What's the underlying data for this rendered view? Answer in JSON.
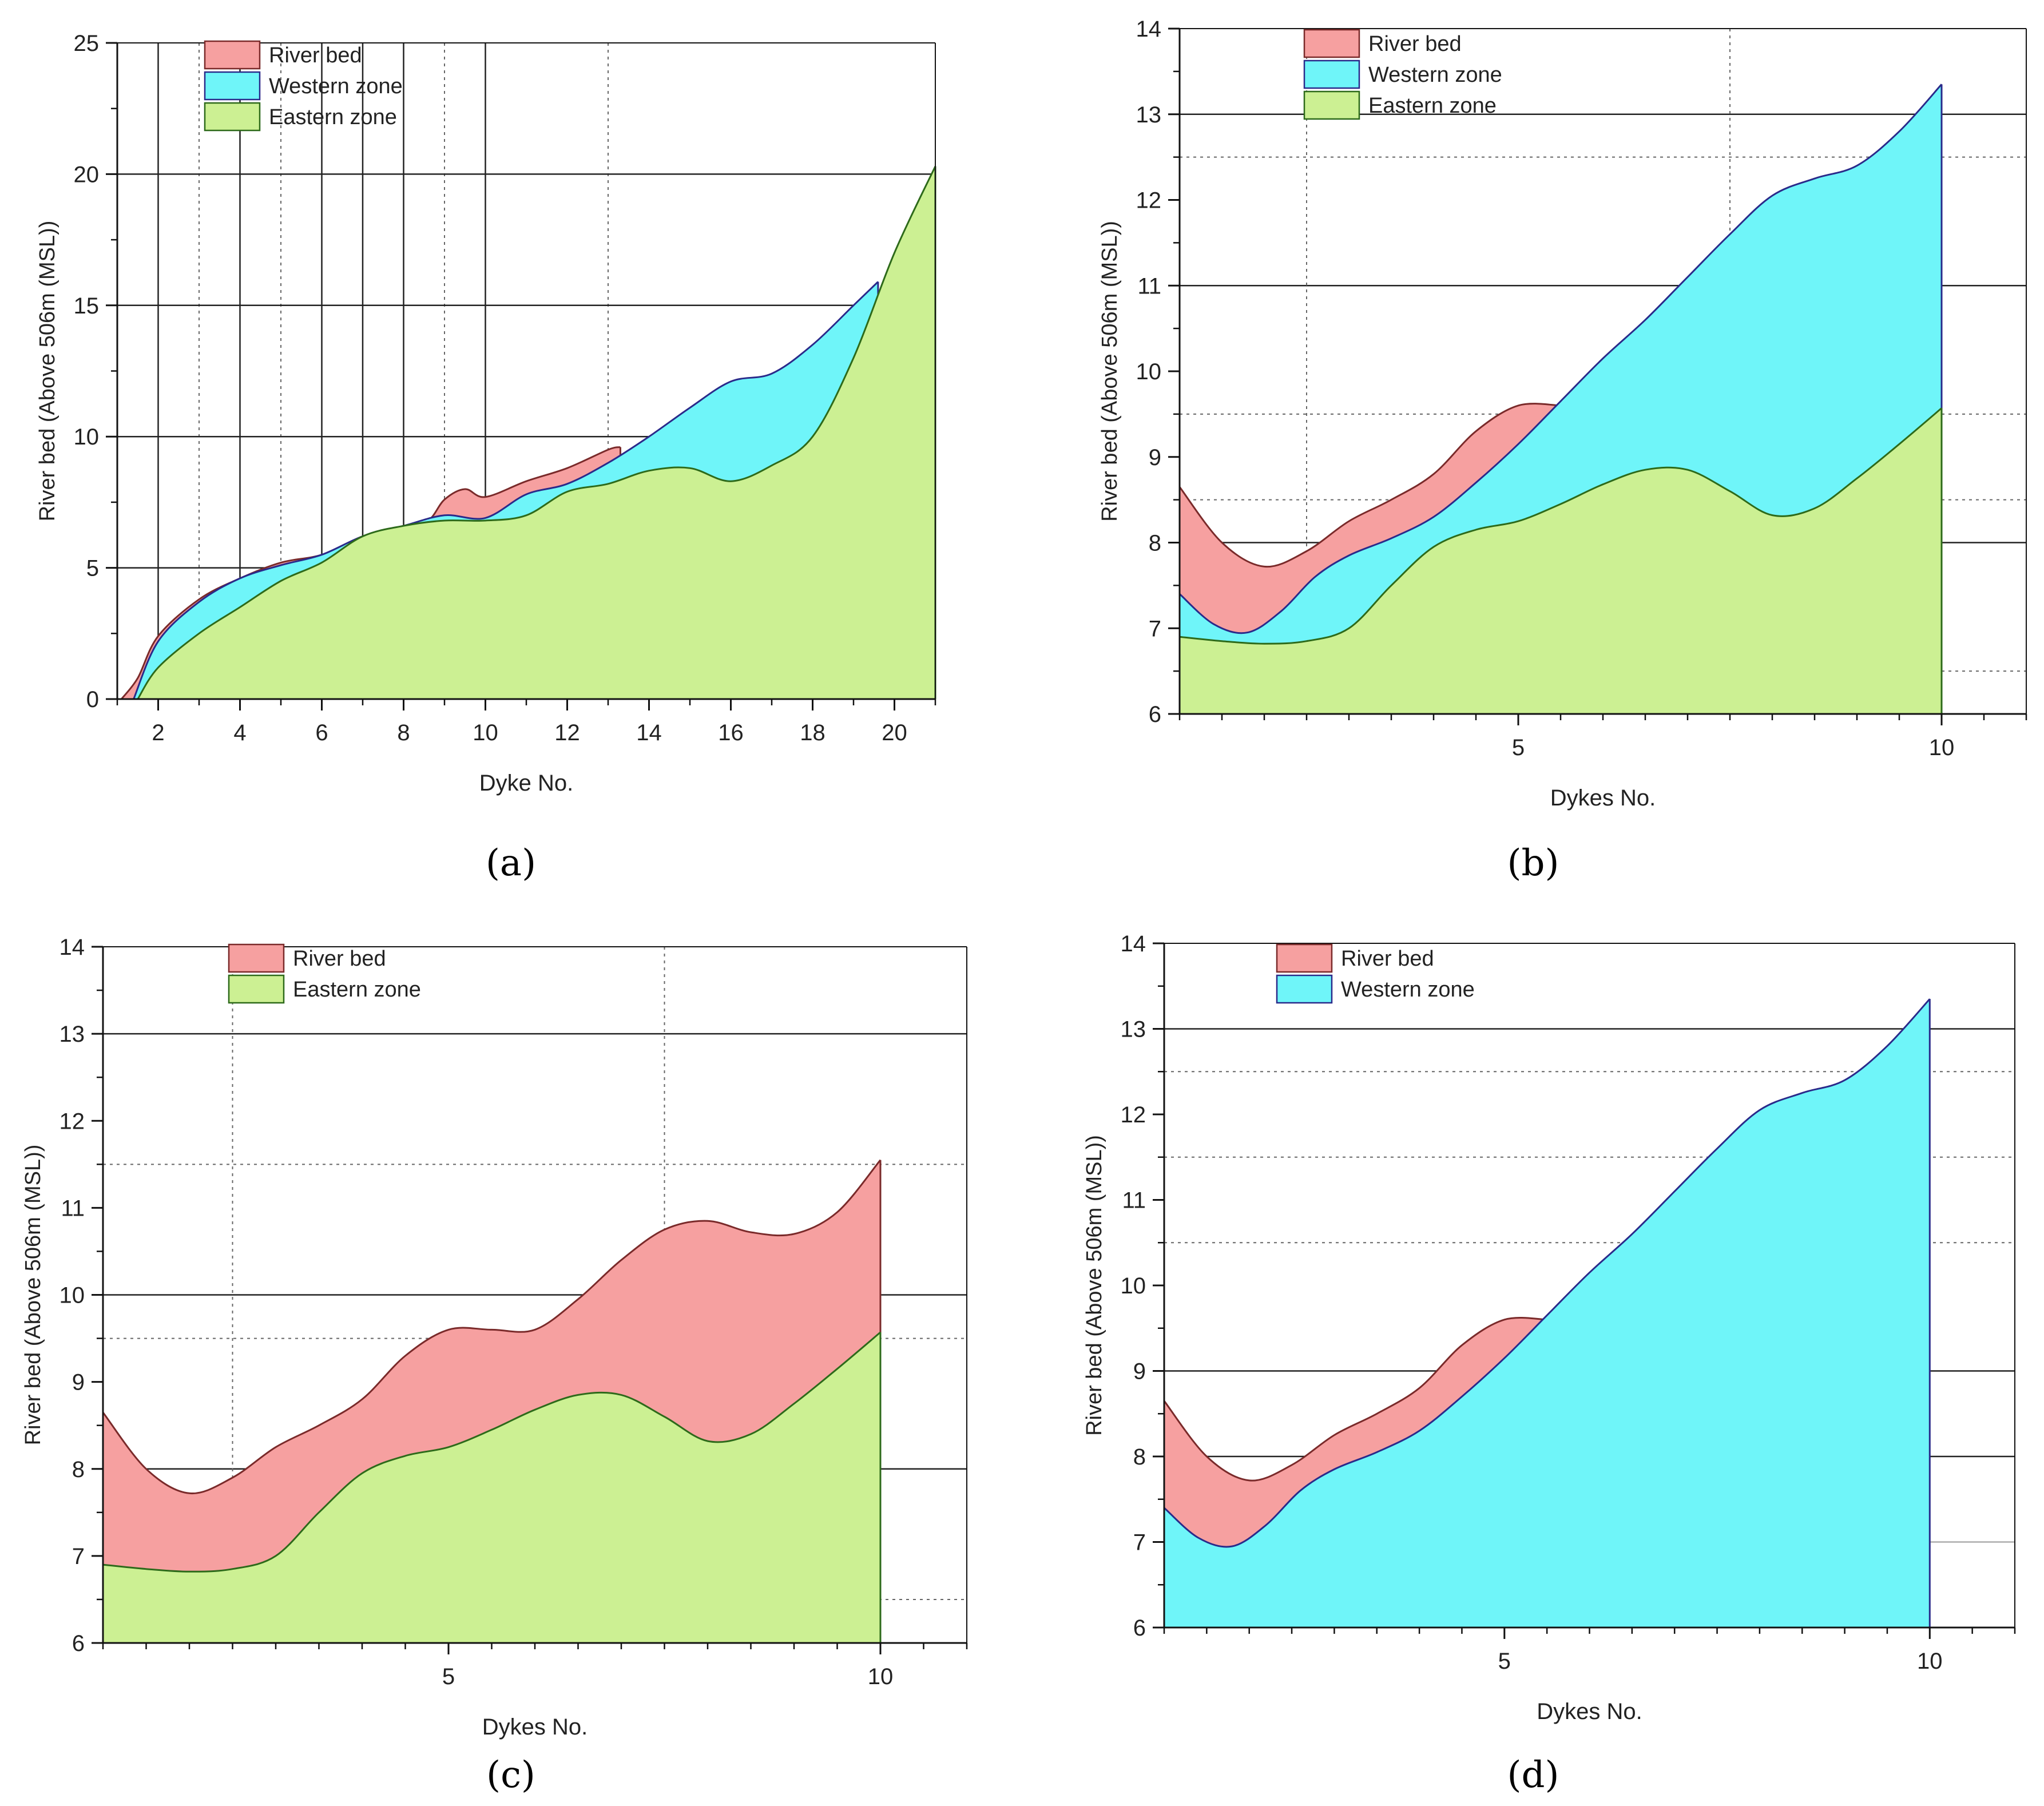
{
  "colors": {
    "river_bed": "#f6a0a0",
    "western_zone": "#6ff5f9",
    "eastern_zone": "#ccf093",
    "river_bed_line": "#7a2a2a",
    "western_line": "#2a2a8a",
    "eastern_line": "#2d6a1a",
    "grid": "#222222"
  },
  "chart_data": [
    {
      "type": "area",
      "panel_label": "a",
      "xlabel": "Dyke No.",
      "ylabel": "River bed (Above 506m (MSL))",
      "xlim": [
        1,
        21
      ],
      "ylim": [
        0,
        25
      ],
      "xticks": [
        2,
        4,
        6,
        8,
        10,
        12,
        14,
        16,
        18,
        20
      ],
      "yticks": [
        0,
        5,
        10,
        15,
        20,
        25
      ],
      "legend": [
        "River bed",
        "Western zone",
        "Eastern zone"
      ],
      "legend_position": "top-left",
      "series": [
        {
          "name": "River bed",
          "color_key": "river_bed",
          "x": [
            1.1,
            1.5,
            2,
            3,
            4,
            5,
            6,
            7,
            8,
            8.6,
            9,
            9.5,
            10,
            11,
            12,
            13,
            13.3
          ],
          "values": [
            0,
            0.8,
            2.4,
            3.8,
            4.6,
            5.2,
            5.5,
            6.2,
            6.6,
            6.8,
            7.6,
            8.0,
            7.7,
            8.3,
            8.8,
            9.5,
            9.6
          ]
        },
        {
          "name": "Western zone",
          "color_key": "western_zone",
          "x": [
            1.4,
            2,
            3,
            4,
            5,
            6,
            7,
            8,
            9,
            10,
            11,
            12,
            13,
            14,
            15,
            16,
            17,
            18,
            19,
            19.6
          ],
          "values": [
            0,
            2.2,
            3.7,
            4.6,
            5.1,
            5.5,
            6.2,
            6.6,
            7.0,
            6.9,
            7.8,
            8.2,
            9.0,
            10.0,
            11.1,
            12.1,
            12.4,
            13.5,
            15.0,
            15.9
          ]
        },
        {
          "name": "Eastern zone",
          "color_key": "eastern_zone",
          "x": [
            1.5,
            2,
            3,
            4,
            5,
            6,
            7,
            8,
            9,
            10,
            11,
            12,
            13,
            14,
            15,
            16,
            17,
            18,
            19,
            20,
            21
          ],
          "values": [
            0,
            1.2,
            2.5,
            3.5,
            4.5,
            5.2,
            6.2,
            6.6,
            6.8,
            6.8,
            7.0,
            7.9,
            8.2,
            8.7,
            8.8,
            8.3,
            8.9,
            10.0,
            13.0,
            17.0,
            20.3
          ]
        }
      ]
    },
    {
      "type": "area",
      "panel_label": "b",
      "xlabel": "Dykes No.",
      "ylabel": "River bed (Above 506m (MSL))",
      "xlim": [
        1,
        11
      ],
      "ylim": [
        6,
        14
      ],
      "xticks": [
        5,
        10
      ],
      "yticks": [
        6,
        7,
        8,
        9,
        10,
        11,
        12,
        13,
        14
      ],
      "legend": [
        "River bed",
        "Western zone",
        "Eastern zone"
      ],
      "legend_position": "top-left",
      "series": [
        {
          "name": "River bed",
          "color_key": "river_bed",
          "x": [
            1,
            1.5,
            2,
            2.5,
            3,
            3.5,
            4,
            4.5,
            5,
            5.5
          ],
          "values": [
            8.65,
            8.0,
            7.72,
            7.9,
            8.25,
            8.5,
            8.8,
            9.3,
            9.6,
            9.6
          ]
        },
        {
          "name": "Western zone",
          "color_key": "western_zone",
          "x": [
            1,
            1.4,
            1.8,
            2.2,
            2.6,
            3,
            3.5,
            4,
            4.5,
            5,
            5.5,
            6,
            6.5,
            7,
            7.5,
            8,
            8.5,
            9,
            9.5,
            10
          ],
          "values": [
            7.4,
            7.05,
            6.95,
            7.2,
            7.6,
            7.85,
            8.05,
            8.3,
            8.7,
            9.15,
            9.65,
            10.15,
            10.6,
            11.1,
            11.6,
            12.05,
            12.25,
            12.4,
            12.8,
            13.35
          ]
        },
        {
          "name": "Eastern zone",
          "color_key": "eastern_zone",
          "x": [
            1,
            1.5,
            2,
            2.5,
            3,
            3.5,
            4,
            4.5,
            5,
            5.5,
            6,
            6.5,
            7,
            7.5,
            8,
            8.5,
            9,
            9.5,
            10
          ],
          "values": [
            6.9,
            6.85,
            6.82,
            6.85,
            7.0,
            7.5,
            7.95,
            8.15,
            8.25,
            8.45,
            8.68,
            8.85,
            8.85,
            8.6,
            8.32,
            8.4,
            8.75,
            9.15,
            9.57
          ]
        }
      ]
    },
    {
      "type": "area",
      "panel_label": "c",
      "xlabel": "Dykes No.",
      "ylabel": "River bed (Above 506m (MSL))",
      "xlim": [
        1,
        11
      ],
      "ylim": [
        6,
        14
      ],
      "xticks": [
        5,
        10
      ],
      "yticks": [
        6,
        7,
        8,
        9,
        10,
        11,
        12,
        13,
        14
      ],
      "legend": [
        "River bed",
        "Eastern zone"
      ],
      "legend_position": "top-left",
      "series": [
        {
          "name": "River bed",
          "color_key": "river_bed",
          "x": [
            1,
            1.5,
            2,
            2.5,
            3,
            3.5,
            4,
            4.5,
            5,
            5.5,
            6,
            6.5,
            7,
            7.5,
            8,
            8.5,
            9,
            9.5,
            10
          ],
          "values": [
            8.65,
            8.0,
            7.72,
            7.9,
            8.25,
            8.5,
            8.8,
            9.3,
            9.6,
            9.6,
            9.6,
            9.95,
            10.4,
            10.75,
            10.85,
            10.72,
            10.7,
            10.95,
            11.55
          ]
        },
        {
          "name": "Eastern zone",
          "color_key": "eastern_zone",
          "x": [
            1,
            1.5,
            2,
            2.5,
            3,
            3.5,
            4,
            4.5,
            5,
            5.5,
            6,
            6.5,
            7,
            7.5,
            8,
            8.5,
            9,
            9.5,
            10
          ],
          "values": [
            6.9,
            6.85,
            6.82,
            6.85,
            7.0,
            7.5,
            7.95,
            8.15,
            8.25,
            8.45,
            8.68,
            8.85,
            8.85,
            8.6,
            8.32,
            8.4,
            8.75,
            9.15,
            9.57
          ]
        }
      ]
    },
    {
      "type": "area",
      "panel_label": "d",
      "xlabel": "Dykes No.",
      "ylabel": "River bed (Above 506m (MSL))",
      "xlim": [
        1,
        11
      ],
      "ylim": [
        6,
        14
      ],
      "xticks": [
        5,
        10
      ],
      "yticks": [
        6,
        7,
        8,
        9,
        10,
        11,
        12,
        13,
        14
      ],
      "legend": [
        "River bed",
        "Western zone"
      ],
      "legend_position": "top-left",
      "series": [
        {
          "name": "River bed",
          "color_key": "river_bed",
          "x": [
            1,
            1.5,
            2,
            2.5,
            3,
            3.5,
            4,
            4.5,
            5,
            5.5
          ],
          "values": [
            8.65,
            8.0,
            7.72,
            7.9,
            8.25,
            8.5,
            8.8,
            9.3,
            9.6,
            9.6
          ]
        },
        {
          "name": "Western zone",
          "color_key": "western_zone",
          "x": [
            1,
            1.4,
            1.8,
            2.2,
            2.6,
            3,
            3.5,
            4,
            4.5,
            5,
            5.5,
            6,
            6.5,
            7,
            7.5,
            8,
            8.5,
            9,
            9.5,
            10
          ],
          "values": [
            7.4,
            7.05,
            6.95,
            7.2,
            7.6,
            7.85,
            8.05,
            8.3,
            8.7,
            9.15,
            9.65,
            10.15,
            10.6,
            11.1,
            11.6,
            12.05,
            12.25,
            12.4,
            12.8,
            13.35
          ]
        }
      ]
    }
  ]
}
